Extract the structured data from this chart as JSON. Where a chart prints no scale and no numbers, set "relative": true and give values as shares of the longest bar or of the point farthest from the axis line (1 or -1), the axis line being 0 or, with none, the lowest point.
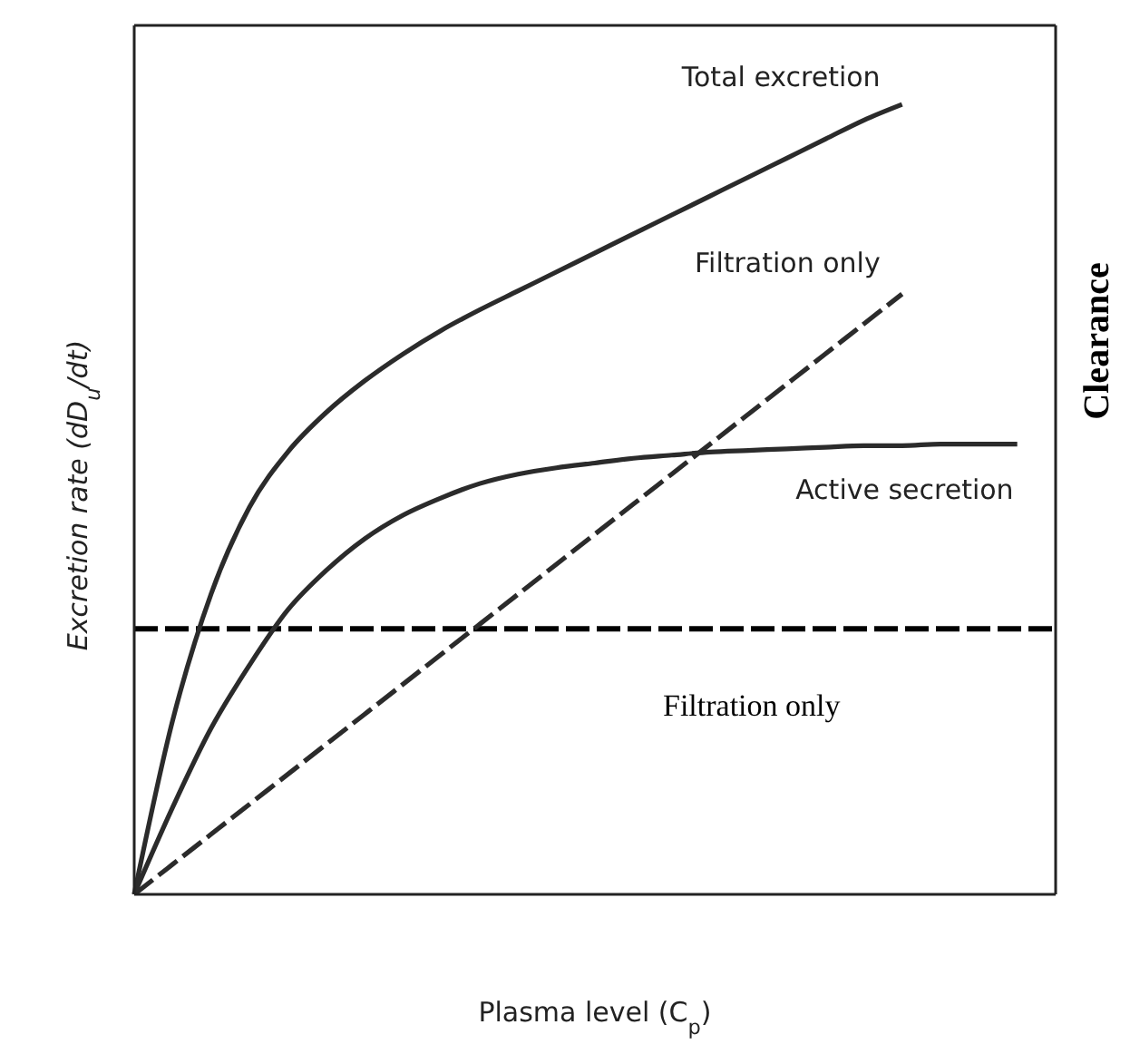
{
  "chart_data": {
    "type": "line",
    "relative": true,
    "xlabel": "Plasma level (C$_{p}$)",
    "ylabel": "Excretion rate (dD$_{u}$/dt)",
    "y2label": "Clearance",
    "categories": [
      null,
      null,
      null,
      null,
      null,
      null,
      null,
      null,
      null,
      null,
      null,
      null,
      null,
      null,
      null,
      null,
      null,
      null,
      null,
      null,
      null,
      null,
      null,
      null,
      null
    ],
    "series": [
      {
        "name": "Total excretion",
        "color": "#2b2b2b",
        "values": [
          0,
          0.22,
          0.38,
          0.49,
          0.56,
          0.61,
          0.65,
          0.684,
          0.714,
          0.74,
          0.764,
          0.788,
          0.812,
          0.836,
          0.86,
          0.884,
          0.908,
          0.932,
          0.956,
          0.98,
          1,
          null,
          null,
          null,
          null
        ]
      },
      {
        "name": "Filtration only",
        "color": "#2b2b2b",
        "line_style": "dashed",
        "values": [
          0,
          0.038,
          0.076,
          0.114,
          0.152,
          0.19,
          0.228,
          0.266,
          0.304,
          0.342,
          0.38,
          0.418,
          0.456,
          0.494,
          0.532,
          0.57,
          0.608,
          0.646,
          0.684,
          0.722,
          0.76,
          null,
          null,
          null,
          null
        ]
      },
      {
        "name": "Active secretion",
        "color": "#2b2b2b",
        "values": [
          0,
          0.11,
          0.21,
          0.29,
          0.36,
          0.41,
          0.45,
          0.48,
          0.502,
          0.52,
          0.532,
          0.54,
          0.546,
          0.552,
          0.556,
          0.56,
          0.562,
          0.564,
          0.566,
          0.568,
          0.568,
          0.57,
          0.57,
          0.57,
          null
        ]
      }
    ],
    "ref_lines": [
      {
        "axis": "y",
        "value": 0.336,
        "label": "Filtration only",
        "color": "#000000",
        "line_style": "dashed"
      }
    ],
    "legend": false,
    "marker": "none"
  }
}
